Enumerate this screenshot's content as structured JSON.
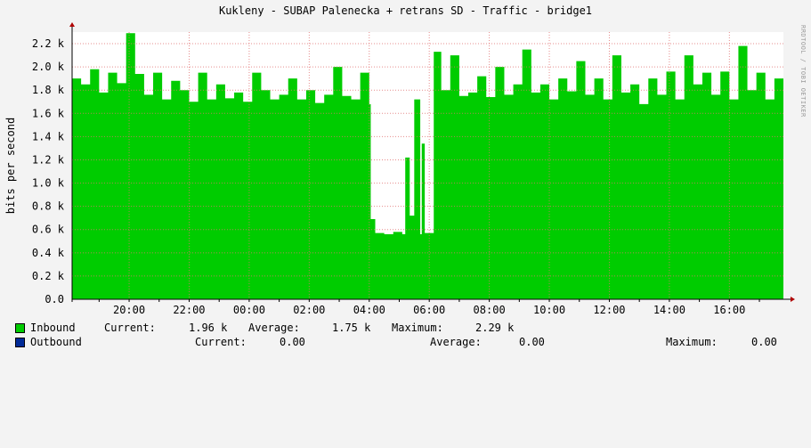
{
  "chart_data": {
    "type": "area",
    "title": "Kukleny - SUBAP Palenecka + retrans SD - Traffic - bridge1",
    "ylabel": "bits per second",
    "watermark": "RRDTOOL / TOBI OETIKER",
    "ylim": [
      0,
      2300
    ],
    "y_ticks": [
      "0.0",
      "0.2 k",
      "0.4 k",
      "0.6 k",
      "0.8 k",
      "1.0 k",
      "1.2 k",
      "1.4 k",
      "1.6 k",
      "1.8 k",
      "2.0 k",
      "2.2 k"
    ],
    "y_tick_values": [
      0,
      200,
      400,
      600,
      800,
      1000,
      1200,
      1400,
      1600,
      1800,
      2000,
      2200
    ],
    "x_ticks": [
      "20:00",
      "22:00",
      "00:00",
      "02:00",
      "04:00",
      "06:00",
      "08:00",
      "10:00",
      "12:00",
      "14:00",
      "16:00"
    ],
    "x_tick_hours": [
      20,
      22,
      24,
      26,
      28,
      30,
      32,
      34,
      36,
      38,
      40
    ],
    "x_range_hours": [
      18.1,
      41.8
    ],
    "grid": true,
    "series": [
      {
        "name": "Inbound",
        "color": "#00cc00",
        "x_hours": [
          18.1,
          18.4,
          18.7,
          19.0,
          19.3,
          19.6,
          19.9,
          20.2,
          20.5,
          20.8,
          21.1,
          21.4,
          21.7,
          22.0,
          22.3,
          22.6,
          22.9,
          23.2,
          23.5,
          23.8,
          24.1,
          24.4,
          24.7,
          25.0,
          25.3,
          25.6,
          25.9,
          26.2,
          26.5,
          26.8,
          27.1,
          27.4,
          27.7,
          28.0,
          28.05,
          28.2,
          28.5,
          28.8,
          29.1,
          29.2,
          29.35,
          29.5,
          29.7,
          29.75,
          29.85,
          30.0,
          30.15,
          30.4,
          30.7,
          31.0,
          31.3,
          31.6,
          31.9,
          32.2,
          32.5,
          32.8,
          33.1,
          33.4,
          33.7,
          34.0,
          34.3,
          34.6,
          34.9,
          35.2,
          35.5,
          35.8,
          36.1,
          36.4,
          36.7,
          37.0,
          37.3,
          37.6,
          37.9,
          38.2,
          38.5,
          38.8,
          39.1,
          39.4,
          39.7,
          40.0,
          40.3,
          40.6,
          40.9,
          41.2,
          41.5,
          41.8
        ],
        "values": [
          1900,
          1850,
          1980,
          1780,
          1950,
          1860,
          2290,
          1940,
          1760,
          1950,
          1720,
          1880,
          1800,
          1700,
          1950,
          1720,
          1850,
          1730,
          1780,
          1700,
          1950,
          1800,
          1720,
          1760,
          1900,
          1720,
          1800,
          1690,
          1760,
          2000,
          1750,
          1720,
          1950,
          1680,
          690,
          570,
          560,
          580,
          560,
          1220,
          720,
          1720,
          560,
          1340,
          570,
          570,
          2130,
          1800,
          2100,
          1750,
          1780,
          1920,
          1740,
          2000,
          1760,
          1850,
          2150,
          1780,
          1850,
          1720,
          1900,
          1790,
          2050,
          1760,
          1900,
          1720,
          2100,
          1780,
          1850,
          1680,
          1900,
          1760,
          1960,
          1720,
          2100,
          1850,
          1950,
          1760,
          1960,
          1720,
          2180,
          1800,
          1950,
          1720,
          1900,
          1960
        ]
      },
      {
        "name": "Outbound",
        "color": "#002a97",
        "values": [
          0
        ]
      }
    ]
  },
  "legend": {
    "inbound": {
      "label": "Inbound",
      "color": "#00cc00",
      "current_label": "Current:",
      "current": "1.96 k",
      "average_label": "Average:",
      "average": "1.75 k",
      "maximum_label": "Maximum:",
      "maximum": "2.29 k"
    },
    "outbound": {
      "label": "Outbound",
      "color": "#002a97",
      "current_label": "Current:",
      "current": "0.00",
      "average_label": "Average:",
      "average": "0.00",
      "maximum_label": "Maximum:",
      "maximum": "0.00"
    }
  }
}
